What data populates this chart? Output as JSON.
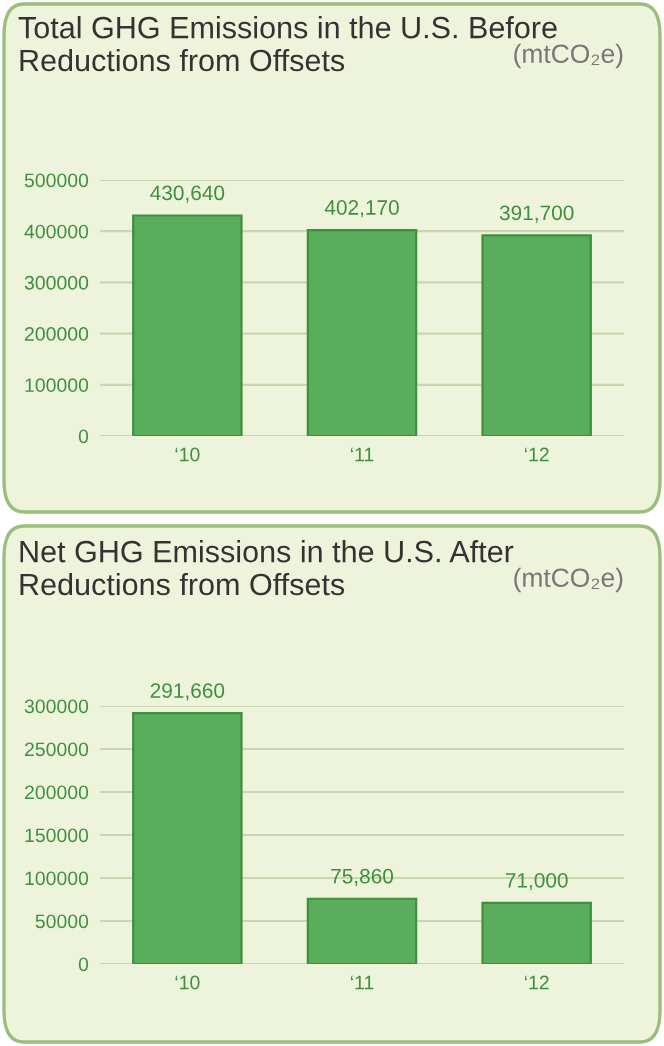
{
  "chart_data": [
    {
      "type": "bar",
      "title": "Total GHG Emissions in the U.S. Before Reductions from Offsets",
      "subtitle": "(mtCO₂e)",
      "categories": [
        "‘10",
        "‘11",
        "‘12"
      ],
      "values": [
        430640,
        402170,
        391700
      ],
      "value_labels": [
        "430,640",
        "402,170",
        "391,700"
      ],
      "color": "#5aad5a",
      "ylim": [
        0,
        500000
      ],
      "yticks": [
        0,
        100000,
        200000,
        300000,
        400000,
        500000
      ],
      "grid": "y"
    },
    {
      "type": "bar",
      "title": "Net GHG Emissions in the U.S. After Reductions from Offsets",
      "subtitle": "(mtCO₂e)",
      "categories": [
        "‘10",
        "‘11",
        "‘12"
      ],
      "values": [
        291660,
        75860,
        71000
      ],
      "value_labels": [
        "291,660",
        "75,860",
        "71,000"
      ],
      "color": "#5aad5a",
      "ylim": [
        0,
        300000
      ],
      "yticks": [
        0,
        50000,
        100000,
        150000,
        200000,
        250000,
        300000
      ],
      "grid": "y"
    }
  ]
}
